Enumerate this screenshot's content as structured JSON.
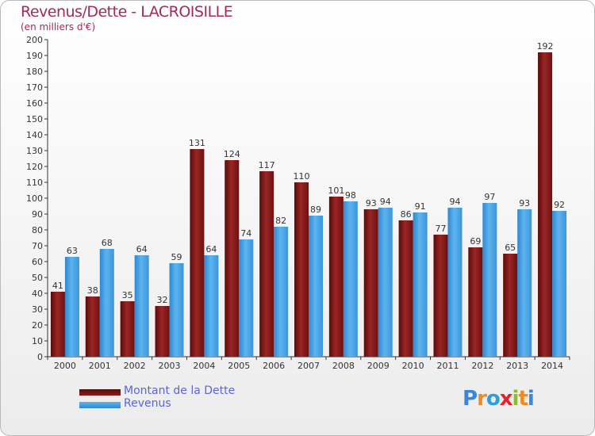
{
  "header": {
    "title": "Revenus/Dette - LACROISILLE",
    "subtitle": "(en milliers d'€)"
  },
  "legend": {
    "dette": "Montant de la Dette",
    "revenus": "Revenus"
  },
  "logo": {
    "text": "Proxiti",
    "colors": [
      "#3a86d8",
      "#f08a1c",
      "#2a9fd8",
      "#e6212e",
      "#8bbf2a",
      "#f08a1c",
      "#3a86d8"
    ]
  },
  "colors": {
    "dette": "#8b1a1a",
    "revenus": "#3f9ee0",
    "title": "#a3295a",
    "legend_text": "#5c65d8"
  },
  "chart_data": {
    "type": "bar",
    "title": "Revenus/Dette - LACROISILLE",
    "subtitle": "(en milliers d'€)",
    "categories": [
      "2000",
      "2001",
      "2002",
      "2003",
      "2004",
      "2005",
      "2006",
      "2007",
      "2008",
      "2009",
      "2010",
      "2011",
      "2012",
      "2013",
      "2014"
    ],
    "series": [
      {
        "name": "Montant de la Dette",
        "values": [
          41,
          38,
          35,
          32,
          131,
          124,
          117,
          110,
          101,
          93,
          86,
          77,
          69,
          65,
          192
        ]
      },
      {
        "name": "Revenus",
        "values": [
          63,
          68,
          64,
          59,
          64,
          74,
          82,
          89,
          98,
          94,
          91,
          94,
          97,
          93,
          92
        ]
      }
    ],
    "ylim": [
      0,
      200
    ],
    "yticks": [
      0,
      10,
      20,
      30,
      40,
      50,
      60,
      70,
      80,
      90,
      100,
      110,
      120,
      130,
      140,
      150,
      160,
      170,
      180,
      190,
      200
    ],
    "grid": false,
    "legend_position": "bottom-left"
  }
}
